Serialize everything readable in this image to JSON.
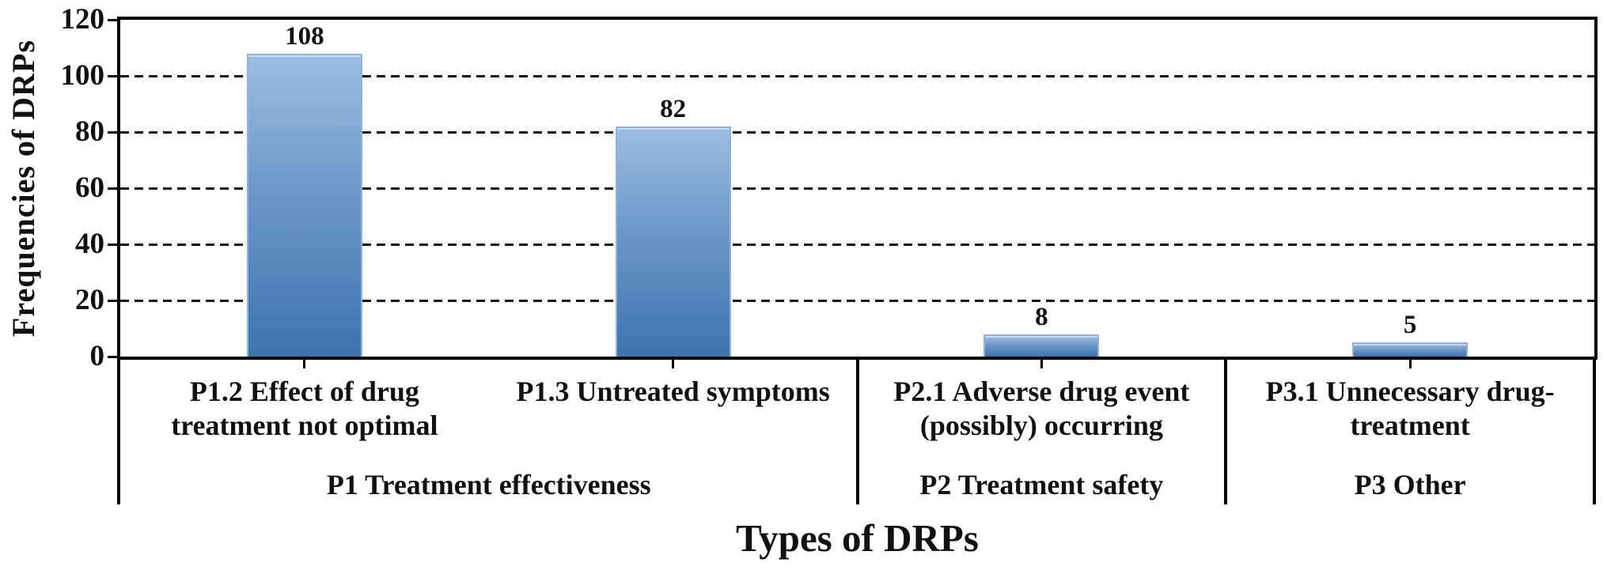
{
  "figure": {
    "background": "#ffffff",
    "text_color": "#111111",
    "axis_color": "#000000"
  },
  "chart_data": {
    "type": "bar",
    "title": "",
    "xlabel": "Types of DRPs",
    "ylabel": "Frequencies of DRPs",
    "ylim": [
      0,
      120
    ],
    "yticks": [
      0,
      20,
      40,
      60,
      80,
      100,
      120
    ],
    "grid": "horizontal dashed black lines at each y tick",
    "legend": "none",
    "bar_style": {
      "fill_top": "#9dbde2",
      "fill_bottom": "#3d73ae",
      "border": "#8fb3dc"
    },
    "categories": [
      "P1.2 Effect of drug\ntreatment not optimal",
      "P1.3 Untreated symptoms",
      "P2.1 Adverse drug event\n(possibly) occurring",
      "P3.1 Unnecessary drug-\ntreatment"
    ],
    "values": [
      108,
      82,
      8,
      5
    ],
    "groups": [
      {
        "label": "P1 Treatment effectiveness",
        "first_category": 0,
        "last_category": 1
      },
      {
        "label": "P2 Treatment safety",
        "first_category": 2,
        "last_category": 2
      },
      {
        "label": "P3 Other",
        "first_category": 3,
        "last_category": 3
      }
    ]
  }
}
